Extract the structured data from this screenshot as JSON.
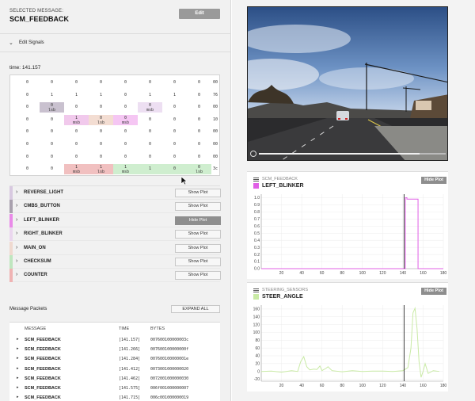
{
  "selected": {
    "label": "SELECTED MESSAGE:",
    "name": "SCM_FEEDBACK",
    "edit_label": "Edit"
  },
  "edit_signals": {
    "label": "Edit Signals"
  },
  "time_label": "time: 141.157",
  "byte_grid": {
    "rows": [
      {
        "cells": [
          [
            "0"
          ],
          [
            "0"
          ],
          [
            "0"
          ],
          [
            "0"
          ],
          [
            "0"
          ],
          [
            "0"
          ],
          [
            "0"
          ],
          [
            "0"
          ]
        ],
        "hex": "00"
      },
      {
        "cells": [
          [
            "0"
          ],
          [
            "1"
          ],
          [
            "1"
          ],
          [
            "1"
          ],
          [
            "0"
          ],
          [
            "1"
          ],
          [
            "1"
          ],
          [
            "0"
          ]
        ],
        "hex": "76"
      },
      {
        "cells": [
          [
            "0"
          ],
          [
            "0",
            "lsb"
          ],
          [
            "0"
          ],
          [
            "0"
          ],
          [
            "0"
          ],
          [
            "0",
            "msb"
          ],
          [
            "0"
          ],
          [
            "0"
          ]
        ],
        "hex": "00"
      },
      {
        "cells": [
          [
            "0"
          ],
          [
            "0"
          ],
          [
            "1",
            "msb"
          ],
          [
            "0",
            "lsb"
          ],
          [
            "0",
            "msb"
          ],
          [
            "0"
          ],
          [
            "0"
          ],
          [
            "0"
          ]
        ],
        "hex": "10"
      },
      {
        "cells": [
          [
            "0"
          ],
          [
            "0"
          ],
          [
            "0"
          ],
          [
            "0"
          ],
          [
            "0"
          ],
          [
            "0"
          ],
          [
            "0"
          ],
          [
            "0"
          ]
        ],
        "hex": "00"
      },
      {
        "cells": [
          [
            "0"
          ],
          [
            "0"
          ],
          [
            "0"
          ],
          [
            "0"
          ],
          [
            "0"
          ],
          [
            "0"
          ],
          [
            "0"
          ],
          [
            "0"
          ]
        ],
        "hex": "00"
      },
      {
        "cells": [
          [
            "0"
          ],
          [
            "0"
          ],
          [
            "0"
          ],
          [
            "0"
          ],
          [
            "0"
          ],
          [
            "0"
          ],
          [
            "0"
          ],
          [
            "0"
          ]
        ],
        "hex": "00"
      },
      {
        "cells": [
          [
            "0"
          ],
          [
            "0"
          ],
          [
            "1",
            "msb"
          ],
          [
            "1",
            "lsb"
          ],
          [
            "1",
            "msb"
          ],
          [
            "1"
          ],
          [
            "0"
          ],
          [
            "0",
            "lsb"
          ]
        ],
        "hex": "3c"
      }
    ],
    "highlights": [
      {
        "row": 2,
        "col": 1,
        "color": "#c9c1cf"
      },
      {
        "row": 2,
        "col": 5,
        "color": "#eddff2"
      },
      {
        "row": 3,
        "col": 2,
        "color": "#f1c9ec"
      },
      {
        "row": 3,
        "col": 3,
        "color": "#f3ddd2"
      },
      {
        "row": 3,
        "col": 4,
        "color": "#f5c6f3"
      },
      {
        "row": 7,
        "col": 2,
        "color": "#f1c0c0"
      },
      {
        "row": 7,
        "col": 3,
        "color": "#f1c0c0"
      },
      {
        "row": 7,
        "col": 4,
        "color": "#cfeecf"
      },
      {
        "row": 7,
        "col": 5,
        "color": "#cfeecf"
      },
      {
        "row": 7,
        "col": 6,
        "color": "#cfeecf"
      },
      {
        "row": 7,
        "col": 7,
        "color": "#cfeecf"
      }
    ]
  },
  "signals": [
    {
      "name": "REVERSE_LIGHT",
      "button": "Show Plot",
      "active": false,
      "color": "#d8c9e0"
    },
    {
      "name": "CMBS_BUTTON",
      "button": "Show Plot",
      "active": false,
      "color": "#a9a1ae"
    },
    {
      "name": "LEFT_BLINKER",
      "button": "Hide Plot",
      "active": true,
      "color": "#e98ae8"
    },
    {
      "name": "RIGHT_BLINKER",
      "button": "Show Plot",
      "active": false,
      "color": "#ead6ee"
    },
    {
      "name": "MAIN_ON",
      "button": "Show Plot",
      "active": false,
      "color": "#efd9cf"
    },
    {
      "name": "CHECKSUM",
      "button": "Show Plot",
      "active": false,
      "color": "#bfe6bf"
    },
    {
      "name": "COUNTER",
      "button": "Show Plot",
      "active": false,
      "color": "#efb3b3"
    }
  ],
  "packets": {
    "title": "Message Packets",
    "expand_label": "EXPAND ALL",
    "headers": {
      "message": "MESSAGE",
      "time": "TIME",
      "bytes": "BYTES"
    },
    "rows": [
      {
        "message": "SCM_FEEDBACK",
        "time": "[141.157]",
        "bytes": "007600100000003c"
      },
      {
        "message": "SCM_FEEDBACK",
        "time": "[141.266]",
        "bytes": "007600100000000f"
      },
      {
        "message": "SCM_FEEDBACK",
        "time": "[141.284]",
        "bytes": "007600100000001e"
      },
      {
        "message": "SCM_FEEDBACK",
        "time": "[141.412]",
        "bytes": "0073001000000020"
      },
      {
        "message": "SCM_FEEDBACK",
        "time": "[141.462]",
        "bytes": "0072001000000030"
      },
      {
        "message": "SCM_FEEDBACK",
        "time": "[141.575]",
        "bytes": "006f001000000007"
      },
      {
        "message": "SCM_FEEDBACK",
        "time": "[141.715]",
        "bytes": "006c001000000019"
      }
    ]
  },
  "video": {
    "progress": 0.86
  },
  "plots": [
    {
      "message": "SCM_FEEDBACK",
      "signal": "LEFT_BLINKER",
      "hide_label": "Hide Plot",
      "color": "#e060e6",
      "chart_data": {
        "type": "line",
        "x_ticks": [
          0,
          20,
          40,
          60,
          80,
          100,
          120,
          140,
          160,
          180
        ],
        "y_ticks": [
          0,
          0.1,
          0.2,
          0.3,
          0.4,
          0.5,
          0.6,
          0.7,
          0.8,
          0.9,
          1.0
        ],
        "y_tick_labels": [
          "0.0",
          "0.1",
          "0.2",
          "0.3",
          "0.4",
          "0.5",
          "0.6",
          "0.7",
          "0.8",
          "0.9",
          "1.0"
        ],
        "xlim": [
          0,
          180
        ],
        "ylim": [
          0,
          1.05
        ],
        "cursor_x": 141.157,
        "series": [
          {
            "x": [
              0,
              142.5,
              142.5,
              144,
              144,
              155,
              155,
              180
            ],
            "y": [
              0,
              0,
              1,
              1,
              0.98,
              0.98,
              0,
              0
            ]
          }
        ]
      }
    },
    {
      "message": "STEERING_SENSORS",
      "signal": "STEER_ANGLE",
      "hide_label": "Hide Plot",
      "color": "#c9eaa5",
      "chart_data": {
        "type": "line",
        "x_ticks": [
          0,
          20,
          40,
          60,
          80,
          100,
          120,
          140,
          160,
          180
        ],
        "y_ticks": [
          -20,
          0,
          20,
          40,
          60,
          80,
          100,
          120,
          140,
          160
        ],
        "y_tick_labels": [
          "-20",
          "0",
          "20",
          "40",
          "60",
          "80",
          "100",
          "120",
          "140",
          "160"
        ],
        "xlim": [
          0,
          180
        ],
        "ylim": [
          -25,
          170
        ],
        "cursor_x": 141.157,
        "series": [
          {
            "x": [
              0,
              10,
              20,
              30,
              36,
              39,
              42,
              45,
              48,
              52,
              55,
              58,
              60,
              64,
              66,
              70,
              80,
              90,
              100,
              110,
              120,
              130,
              140,
              145,
              148,
              150,
              152,
              154,
              156,
              158,
              160,
              162,
              165,
              170,
              176
            ],
            "y": [
              0,
              1,
              -2,
              2,
              0,
              25,
              38,
              12,
              4,
              6,
              5,
              14,
              2,
              8,
              12,
              2,
              -1,
              2,
              0,
              1,
              1,
              0,
              2,
              10,
              60,
              150,
              162,
              110,
              25,
              -15,
              0,
              20,
              -5,
              2,
              0
            ]
          }
        ]
      }
    }
  ]
}
